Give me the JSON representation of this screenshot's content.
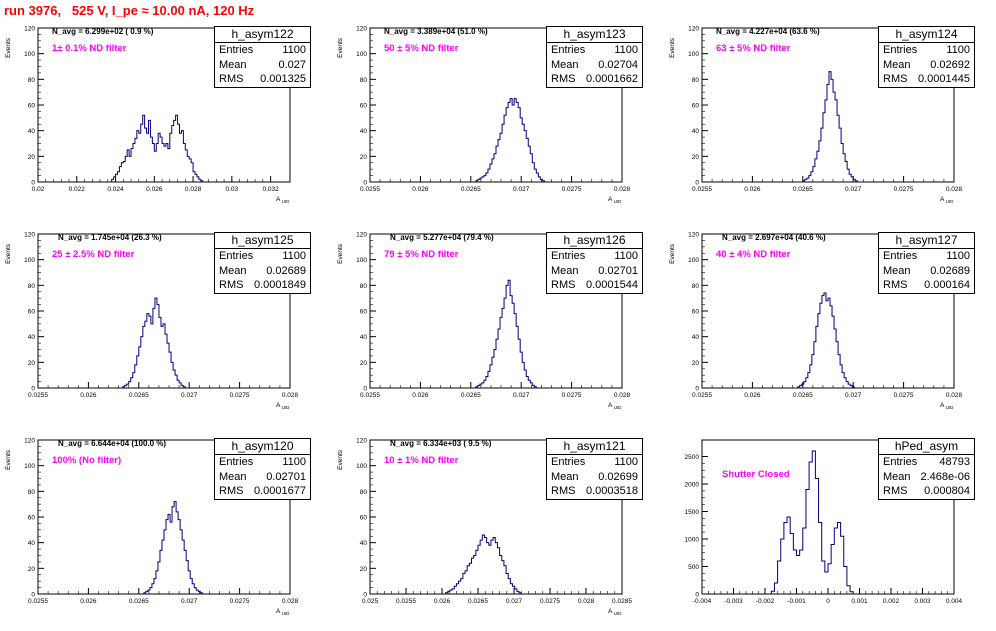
{
  "page": {
    "title": "run 3976,   525 V, I_pe ≈ 10.00 nA, 120 Hz"
  },
  "colors": {
    "histogram_line": "#00007f",
    "filter_text": "#ff00ff",
    "title_text": "#ff0000"
  },
  "panels": [
    {
      "name": "h_asym122",
      "stats": {
        "entries": "1100",
        "mean": "0.027",
        "rms": "0.001325"
      },
      "navg": "N_avg = 6.299e+02 ( 0.9 %)",
      "filter": "1± 0.1% ND filter"
    },
    {
      "name": "h_asym123",
      "stats": {
        "entries": "1100",
        "mean": "0.02704",
        "rms": "0.0001662"
      },
      "navg": "N_avg = 3.389e+04 (51.0 %)",
      "filter": "50 ± 5% ND filter"
    },
    {
      "name": "h_asym124",
      "stats": {
        "entries": "1100",
        "mean": "0.02692",
        "rms": "0.0001445"
      },
      "navg": "N_avg = 4.227e+04 (63.6 %)",
      "filter": "63 ± 5% ND filter"
    },
    {
      "name": "h_asym125",
      "stats": {
        "entries": "1100",
        "mean": "0.02689",
        "rms": "0.0001849"
      },
      "navg": "N_avg = 1.745e+04 (26.3 %)",
      "filter": "25 ± 2.5% ND filter"
    },
    {
      "name": "h_asym126",
      "stats": {
        "entries": "1100",
        "mean": "0.02701",
        "rms": "0.0001544"
      },
      "navg": "N_avg = 5.277e+04 (79.4 %)",
      "filter": "79 ± 5% ND filter"
    },
    {
      "name": "h_asym127",
      "stats": {
        "entries": "1100",
        "mean": "0.02689",
        "rms": "0.000164"
      },
      "navg": "N_avg = 2.697e+04 (40.6 %)",
      "filter": "40 ± 4% ND filter"
    },
    {
      "name": "h_asym120",
      "stats": {
        "entries": "1100",
        "mean": "0.02701",
        "rms": "0.0001677"
      },
      "navg": "N_avg = 6.644e+04 (100.0 %)",
      "filter": "100% (No filter)"
    },
    {
      "name": "h_asym121",
      "stats": {
        "entries": "1100",
        "mean": "0.02699",
        "rms": "0.0003518"
      },
      "navg": "N_avg = 6.334e+03 ( 9.5 %)",
      "filter": "10 ± 1% ND filter"
    },
    {
      "name": "hPed_asym",
      "stats": {
        "entries": "48793",
        "mean": "2.468e-06",
        "rms": "0.000804"
      },
      "navg": "",
      "filter": "Shutter Closed"
    }
  ],
  "chart_data": [
    {
      "type": "histogram",
      "name": "h_asym122",
      "xlabel": "A_UID",
      "ylabel": "Events",
      "xlim": [
        0.02,
        0.033
      ],
      "ylim": [
        0,
        120
      ],
      "xticks": [
        0.02,
        0.022,
        0.024,
        0.026,
        0.028,
        0.03,
        0.032
      ],
      "xtick_labels": [
        "0.02",
        "0.022",
        "0.024",
        "0.026",
        "0.028",
        "0.03",
        "0.032"
      ],
      "yticks": [
        0,
        20,
        40,
        60,
        80,
        100,
        120
      ],
      "x_start": 0.0238,
      "bin_width": 0.0001,
      "counts": [
        2,
        4,
        6,
        8,
        12,
        15,
        16,
        20,
        25,
        20,
        26,
        30,
        34,
        40,
        38,
        45,
        52,
        42,
        38,
        48,
        35,
        30,
        24,
        30,
        38,
        35,
        30,
        28,
        30,
        26,
        38,
        44,
        48,
        52,
        45,
        38,
        40,
        30,
        25,
        20,
        18,
        15,
        8,
        6,
        4,
        2,
        1
      ]
    },
    {
      "type": "histogram",
      "name": "h_asym123",
      "xlabel": "A_UID",
      "ylabel": "Events",
      "xlim": [
        0.0255,
        0.028
      ],
      "ylim": [
        0,
        120
      ],
      "xticks": [
        0.0255,
        0.026,
        0.0265,
        0.027,
        0.0275,
        0.028
      ],
      "xtick_labels": [
        "0.0255",
        "0.026",
        "0.0265",
        "0.027",
        "0.0275",
        "0.028"
      ],
      "yticks": [
        0,
        20,
        40,
        60,
        80,
        100,
        120
      ],
      "x_start": 0.02655,
      "bin_width": 2e-05,
      "counts": [
        1,
        2,
        3,
        4,
        5,
        7,
        10,
        14,
        18,
        22,
        28,
        33,
        38,
        45,
        52,
        58,
        62,
        65,
        60,
        65,
        62,
        58,
        50,
        45,
        40,
        34,
        28,
        22,
        15,
        10,
        7,
        4,
        2,
        1
      ]
    },
    {
      "type": "histogram",
      "name": "h_asym124",
      "xlabel": "A_UID",
      "ylabel": "Events",
      "xlim": [
        0.0255,
        0.028
      ],
      "ylim": [
        0,
        120
      ],
      "xticks": [
        0.0255,
        0.026,
        0.0265,
        0.027,
        0.0275,
        0.028
      ],
      "xtick_labels": [
        "0.0255",
        "0.026",
        "0.0265",
        "0.027",
        "0.0275",
        "0.028"
      ],
      "yticks": [
        0,
        20,
        40,
        60,
        80,
        100,
        120
      ],
      "x_start": 0.0265,
      "bin_width": 2e-05,
      "counts": [
        1,
        2,
        3,
        5,
        8,
        12,
        18,
        24,
        32,
        42,
        54,
        64,
        76,
        86,
        80,
        70,
        64,
        52,
        42,
        30,
        22,
        16,
        10,
        6,
        4,
        2,
        1
      ]
    },
    {
      "type": "histogram",
      "name": "h_asym125",
      "xlabel": "A_UID",
      "ylabel": "Events",
      "xlim": [
        0.0255,
        0.028
      ],
      "ylim": [
        0,
        120
      ],
      "xticks": [
        0.0255,
        0.026,
        0.0265,
        0.027,
        0.0275,
        0.028
      ],
      "xtick_labels": [
        "0.0255",
        "0.026",
        "0.0265",
        "0.027",
        "0.0275",
        "0.028"
      ],
      "yticks": [
        0,
        20,
        40,
        60,
        80,
        100,
        120
      ],
      "x_start": 0.02634,
      "bin_width": 2e-05,
      "counts": [
        1,
        2,
        3,
        5,
        8,
        12,
        18,
        25,
        32,
        40,
        48,
        52,
        58,
        56,
        50,
        62,
        70,
        65,
        55,
        48,
        50,
        42,
        35,
        28,
        20,
        14,
        10,
        6,
        4,
        2,
        1
      ]
    },
    {
      "type": "histogram",
      "name": "h_asym126",
      "xlabel": "A_UID",
      "ylabel": "Events",
      "xlim": [
        0.0255,
        0.028
      ],
      "ylim": [
        0,
        120
      ],
      "xticks": [
        0.0255,
        0.026,
        0.0265,
        0.027,
        0.0275,
        0.028
      ],
      "xtick_labels": [
        "0.0255",
        "0.026",
        "0.0265",
        "0.027",
        "0.0275",
        "0.028"
      ],
      "yticks": [
        0,
        20,
        40,
        60,
        80,
        100,
        120
      ],
      "x_start": 0.02655,
      "bin_width": 2e-05,
      "counts": [
        1,
        2,
        3,
        4,
        6,
        9,
        13,
        18,
        24,
        30,
        38,
        46,
        55,
        62,
        70,
        80,
        84,
        72,
        66,
        58,
        48,
        38,
        28,
        20,
        14,
        9,
        6,
        4,
        2,
        1
      ]
    },
    {
      "type": "histogram",
      "name": "h_asym127",
      "xlabel": "A_UID",
      "ylabel": "Events",
      "xlim": [
        0.0255,
        0.028
      ],
      "ylim": [
        0,
        120
      ],
      "xticks": [
        0.0255,
        0.026,
        0.0265,
        0.027,
        0.0275,
        0.028
      ],
      "xtick_labels": [
        "0.0255",
        "0.026",
        "0.0265",
        "0.027",
        "0.0275",
        "0.028"
      ],
      "yticks": [
        0,
        20,
        40,
        60,
        80,
        100,
        120
      ],
      "x_start": 0.02645,
      "bin_width": 2e-05,
      "counts": [
        1,
        2,
        3,
        5,
        8,
        12,
        18,
        26,
        36,
        48,
        58,
        66,
        72,
        74,
        68,
        70,
        64,
        56,
        46,
        36,
        26,
        18,
        12,
        8,
        5,
        3,
        2,
        1
      ]
    },
    {
      "type": "histogram",
      "name": "h_asym120",
      "xlabel": "A_UID",
      "ylabel": "Events",
      "xlim": [
        0.0255,
        0.028
      ],
      "ylim": [
        0,
        120
      ],
      "xticks": [
        0.0255,
        0.026,
        0.0265,
        0.027,
        0.0275,
        0.028
      ],
      "xtick_labels": [
        "0.0255",
        "0.026",
        "0.0265",
        "0.027",
        "0.0275",
        "0.028"
      ],
      "yticks": [
        0,
        20,
        40,
        60,
        80,
        100,
        120
      ],
      "x_start": 0.02655,
      "bin_width": 2e-05,
      "counts": [
        1,
        2,
        3,
        5,
        8,
        12,
        18,
        25,
        34,
        42,
        50,
        58,
        62,
        56,
        68,
        72,
        64,
        58,
        50,
        42,
        34,
        26,
        18,
        12,
        8,
        5,
        3,
        2,
        1
      ]
    },
    {
      "type": "histogram",
      "name": "h_asym121",
      "xlabel": "A_UID",
      "ylabel": "Events",
      "xlim": [
        0.025,
        0.0285
      ],
      "ylim": [
        0,
        120
      ],
      "xticks": [
        0.025,
        0.0255,
        0.026,
        0.0265,
        0.027,
        0.0275,
        0.028,
        0.0285
      ],
      "xtick_labels": [
        "0.025",
        "0.0255",
        "0.026",
        "0.0265",
        "0.027",
        "0.0275",
        "0.028",
        "0.0285"
      ],
      "yticks": [
        0,
        20,
        40,
        60,
        80,
        100,
        120
      ],
      "x_start": 0.02605,
      "bin_width": 3e-05,
      "counts": [
        1,
        2,
        3,
        4,
        6,
        8,
        10,
        12,
        16,
        18,
        22,
        24,
        28,
        30,
        34,
        38,
        42,
        46,
        44,
        40,
        38,
        42,
        44,
        40,
        36,
        30,
        26,
        22,
        16,
        12,
        8,
        6,
        4,
        2,
        1
      ]
    },
    {
      "type": "histogram",
      "name": "hPed_asym",
      "xlabel": "",
      "ylabel": "",
      "xlim": [
        -0.004,
        0.004
      ],
      "ylim": [
        0,
        2800
      ],
      "xticks": [
        -0.004,
        -0.003,
        -0.002,
        -0.001,
        0,
        0.001,
        0.002,
        0.003,
        0.004
      ],
      "xtick_labels": [
        "-0.004",
        "-0.003",
        "-0.002",
        "-0.001",
        "0",
        "0.001",
        "0.002",
        "0.003",
        "0.004"
      ],
      "yticks": [
        0,
        500,
        1000,
        1500,
        2000,
        2500
      ],
      "x_start": -0.0018,
      "bin_width": 0.0001,
      "counts": [
        50,
        200,
        600,
        1000,
        1300,
        1400,
        1100,
        800,
        700,
        800,
        1200,
        1900,
        2400,
        2600,
        2100,
        1300,
        600,
        400,
        550,
        900,
        1200,
        1300,
        1050,
        500,
        150,
        40
      ]
    }
  ]
}
